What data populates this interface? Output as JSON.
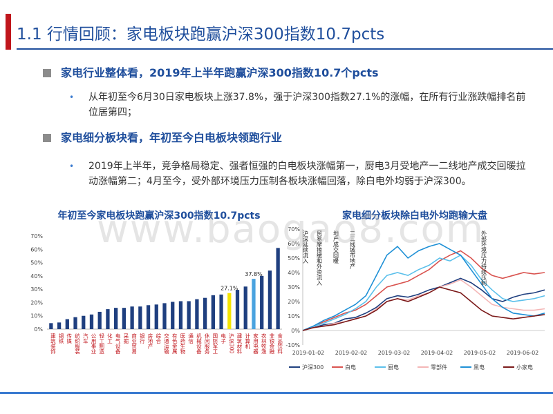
{
  "title": "1.1 行情回顾：家电板块跑赢沪深300指数10.7pcts",
  "sections": [
    {
      "heading": "家电行业整体看，2019年上半年跑赢沪深300指数10.7个pcts",
      "bullet": "从年初至今6月30日家电板块上涨37.8%，强于沪深300指数27.1%的涨幅，在所有行业涨跌幅排名前位居第四；"
    },
    {
      "heading": "家电细分板块看，年初至今白电板块领跑行业",
      "bullet": "2019年上半年，竞争格局稳定、强者恒强的白电板块涨幅第一，厨电3月受地产一二线地产成交回暖拉动涨幅第二；4月至今，受外部环境压力压制各板块涨幅回落，除白电外均弱于沪深300。"
    }
  ],
  "watermark": "www.baogao8.com",
  "colors": {
    "title_blue": "#1f4e9c",
    "accent_red": "#c0161c",
    "bar_navy": "#1f3f7f",
    "bar_yellow": "#f5e400",
    "bar_light": "#4aa3df"
  },
  "chart_data": [
    {
      "type": "bar",
      "title": "年初至今家电板块跑赢沪深300指数10.7pcts",
      "yticks": [
        "70%",
        "60%",
        "50%",
        "40%",
        "30%",
        "20%",
        "10%",
        "0%"
      ],
      "ylim": [
        0,
        70
      ],
      "categories": [
        "建筑装饰",
        "钢铁",
        "传媒",
        "纺织服装",
        "汽车",
        "公用事业",
        "轻工制造",
        "化工",
        "电气设备",
        "采掘",
        "商业贸易",
        "银行",
        "房地产",
        "综合",
        "交通运输",
        "有色金属",
        "医药生物",
        "通信",
        "机械设备",
        "休闲服务",
        "国防军工",
        "电子",
        "沪深300",
        "建筑材料",
        "计算机",
        "家用电器",
        "农林牧渔",
        "非银金融",
        "食品饮料"
      ],
      "values": [
        4.5,
        5,
        7.5,
        9,
        10,
        11,
        13,
        15,
        16,
        16,
        17,
        17,
        18,
        18.5,
        19.5,
        20.5,
        21,
        21,
        22.5,
        23.5,
        25.5,
        26,
        27.1,
        29.5,
        32,
        37.8,
        40,
        44,
        61
      ],
      "highlight": {
        "沪深300": "yellow",
        "家用电器": "light"
      },
      "data_labels": {
        "沪深300": "27.1%",
        "家用电器": "37.8%"
      }
    },
    {
      "type": "line",
      "title": "家电细分板块除白电外均跑输大盘",
      "yticks": [
        "70%",
        "60%",
        "50%",
        "40%",
        "30%",
        "20%",
        "10%",
        "0%",
        "-10%"
      ],
      "ylim": [
        -10,
        70
      ],
      "xticks": [
        "2019-01-02",
        "2019-02-02",
        "2019-03-02",
        "2019-04-02",
        "2019-05-02",
        "2019-06-02"
      ],
      "annotations": [
        "沪深延续流入",
        "贸易摩擦缓和外资流入",
        "地产成交回暖",
        "二三线城市地产",
        "外部环境压力持续压制"
      ],
      "series": [
        {
          "name": "沪深300",
          "color": "#1f3f7f",
          "values": [
            0,
            2,
            4,
            5,
            8,
            9,
            12,
            16,
            22,
            24,
            23,
            25,
            28,
            30,
            33,
            36,
            33,
            28,
            22,
            20,
            23,
            25,
            26,
            28
          ]
        },
        {
          "name": "白电",
          "color": "#d9534f",
          "values": [
            0,
            3,
            6,
            9,
            12,
            14,
            18,
            24,
            30,
            32,
            34,
            38,
            42,
            48,
            52,
            55,
            50,
            43,
            38,
            36,
            38,
            40,
            39,
            40
          ]
        },
        {
          "name": "厨电",
          "color": "#5bc0eb",
          "values": [
            0,
            3,
            5,
            8,
            11,
            15,
            20,
            30,
            38,
            40,
            38,
            42,
            45,
            50,
            48,
            52,
            45,
            35,
            28,
            22,
            20,
            21,
            22,
            24
          ]
        },
        {
          "name": "零部件",
          "color": "#f4b6b6",
          "values": [
            0,
            2,
            3,
            5,
            6,
            8,
            10,
            15,
            20,
            22,
            21,
            24,
            26,
            30,
            32,
            35,
            30,
            24,
            18,
            16,
            15,
            14,
            14,
            15
          ]
        },
        {
          "name": "黑电",
          "color": "#1e90d6",
          "values": [
            0,
            3,
            7,
            10,
            14,
            18,
            24,
            38,
            52,
            58,
            50,
            55,
            58,
            60,
            56,
            52,
            42,
            32,
            22,
            16,
            12,
            11,
            10,
            12
          ]
        },
        {
          "name": "小家电",
          "color": "#7b1a1a",
          "values": [
            0,
            2,
            3,
            4,
            6,
            8,
            10,
            14,
            20,
            22,
            20,
            23,
            26,
            30,
            28,
            26,
            20,
            14,
            10,
            9,
            8,
            9,
            10,
            11
          ]
        }
      ]
    }
  ]
}
